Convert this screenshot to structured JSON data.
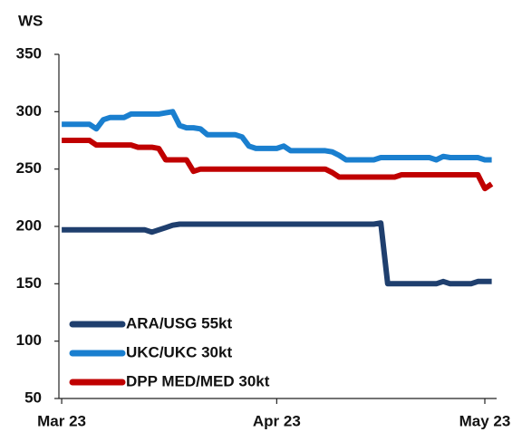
{
  "chart_data": {
    "type": "line",
    "y_label": "WS",
    "x": [
      0,
      1,
      2,
      3,
      4,
      5,
      6,
      7,
      8,
      9,
      10,
      11,
      12,
      13,
      14,
      15,
      16,
      17,
      18,
      19,
      20,
      21,
      22,
      23,
      24,
      25,
      26,
      27,
      28,
      29,
      30,
      31,
      32,
      33,
      34,
      35,
      36,
      37,
      38,
      39,
      40,
      41,
      42,
      43,
      44,
      45,
      46,
      47,
      48,
      49,
      50,
      51,
      52,
      53,
      54,
      55,
      56,
      57,
      58,
      59,
      60,
      61,
      62
    ],
    "series": [
      {
        "name": "ARA/USG 55kt",
        "color": "#1f3f6e",
        "values": [
          197,
          197,
          197,
          197,
          197,
          197,
          197,
          197,
          197,
          197,
          197,
          197,
          197,
          195,
          197,
          199,
          201,
          202,
          202,
          202,
          202,
          202,
          202,
          202,
          202,
          202,
          202,
          202,
          202,
          202,
          202,
          202,
          202,
          202,
          202,
          202,
          202,
          202,
          202,
          202,
          202,
          202,
          202,
          202,
          202,
          202,
          203,
          150,
          150,
          150,
          150,
          150,
          150,
          150,
          150,
          152,
          150,
          150,
          150,
          150,
          152,
          152,
          152
        ]
      },
      {
        "name": "UKC/UKC 30kt",
        "color": "#1a7fcf",
        "values": [
          289,
          289,
          289,
          289,
          289,
          285,
          293,
          295,
          295,
          295,
          298,
          298,
          298,
          298,
          298,
          299,
          300,
          288,
          286,
          286,
          285,
          280,
          280,
          280,
          280,
          280,
          278,
          270,
          268,
          268,
          268,
          268,
          270,
          266,
          266,
          266,
          266,
          266,
          266,
          265,
          262,
          258,
          258,
          258,
          258,
          258,
          260,
          260,
          260,
          260,
          260,
          260,
          260,
          260,
          258,
          261,
          260,
          260,
          260,
          260,
          260,
          258,
          258
        ]
      },
      {
        "name": "DPP MED/MED 30kt",
        "color": "#c00000",
        "values": [
          275,
          275,
          275,
          275,
          275,
          271,
          271,
          271,
          271,
          271,
          271,
          269,
          269,
          269,
          268,
          258,
          258,
          258,
          258,
          248,
          250,
          250,
          250,
          250,
          250,
          250,
          250,
          250,
          250,
          250,
          250,
          250,
          250,
          250,
          250,
          250,
          250,
          250,
          250,
          247,
          243,
          243,
          243,
          243,
          243,
          243,
          243,
          243,
          243,
          245,
          245,
          245,
          245,
          245,
          245,
          245,
          245,
          245,
          245,
          245,
          245,
          233,
          237
        ]
      }
    ],
    "xlim": [
      -0.4,
      62.7
    ],
    "xticks": [
      {
        "value": 0,
        "label": "Mar 23"
      },
      {
        "value": 31,
        "label": "Apr 23"
      },
      {
        "value": 61,
        "label": "May 23"
      }
    ],
    "ylim": [
      50,
      350
    ],
    "yticks": [
      50,
      100,
      150,
      200,
      250,
      300,
      350
    ],
    "legend": "lower left"
  }
}
